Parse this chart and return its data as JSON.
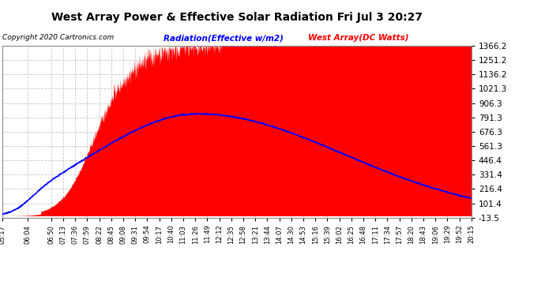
{
  "title": "West Array Power & Effective Solar Radiation Fri Jul 3 20:27",
  "copyright": "Copyright 2020 Cartronics.com",
  "legend_radiation": "Radiation(Effective w/m2)",
  "legend_west": "West Array(DC Watts)",
  "radiation_color": "blue",
  "west_color": "red",
  "bg_color": "#ffffff",
  "plot_bg_color": "#ffffff",
  "grid_color": "#c8c8c8",
  "ymin": -13.5,
  "ymax": 1366.2,
  "yticks": [
    -13.5,
    101.4,
    216.4,
    331.4,
    446.4,
    561.3,
    676.3,
    791.3,
    906.3,
    1021.3,
    1136.2,
    1251.2,
    1366.2
  ],
  "xtick_labels": [
    "05:17",
    "06:04",
    "06:50",
    "07:13",
    "07:36",
    "07:59",
    "08:22",
    "08:45",
    "09:08",
    "09:31",
    "09:54",
    "10:17",
    "10:40",
    "11:03",
    "11:26",
    "11:49",
    "12:12",
    "12:35",
    "12:58",
    "13:21",
    "13:44",
    "14:07",
    "14:30",
    "14:53",
    "15:16",
    "15:39",
    "16:02",
    "16:25",
    "16:48",
    "17:11",
    "17:34",
    "17:57",
    "18:20",
    "18:43",
    "19:06",
    "19:29",
    "19:52",
    "20:15"
  ]
}
